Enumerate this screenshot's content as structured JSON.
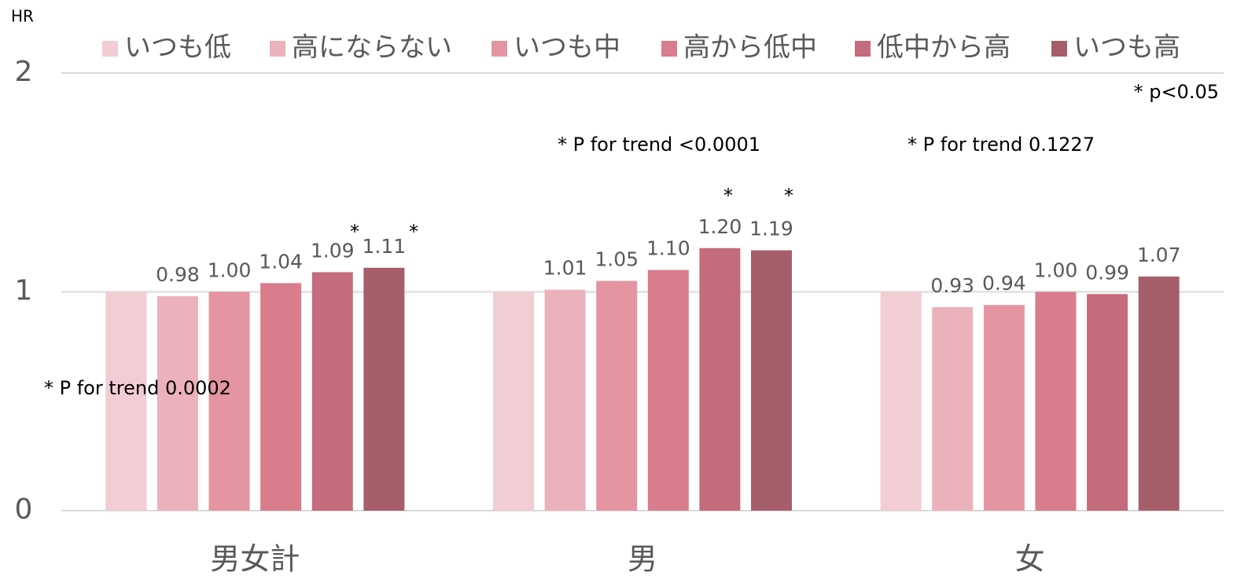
{
  "chart_data": {
    "type": "bar",
    "y_axis_label": "HR",
    "categories": [
      "男女計",
      "男",
      "女"
    ],
    "ylim": [
      0,
      2
    ],
    "yticks": [
      0,
      1,
      2
    ],
    "grid": true,
    "legend": "top",
    "series": [
      {
        "name": "いつも低",
        "color": "#f2cdd3",
        "values": [
          1,
          1,
          1
        ],
        "value_labels": [
          null,
          null,
          null
        ]
      },
      {
        "name": "高にならない",
        "color": "#ecb2bb",
        "values": [
          0.98,
          1.01,
          0.93
        ],
        "value_labels": [
          "0.98",
          "1.01",
          "0.93"
        ]
      },
      {
        "name": "いつも中",
        "color": "#e495a1",
        "values": [
          1,
          1.05,
          0.94
        ],
        "value_labels": [
          "1.00",
          "1.05",
          "0.94"
        ]
      },
      {
        "name": "高から低中",
        "color": "#d97c8c",
        "values": [
          1.04,
          1.1,
          1
        ],
        "value_labels": [
          "1.04",
          "1.10",
          "1.00"
        ]
      },
      {
        "name": "低中から高",
        "color": "#c46b7c",
        "values": [
          1.09,
          1.2,
          0.99
        ],
        "value_labels": [
          "1.09",
          "1.20",
          "0.99"
        ]
      },
      {
        "name": "いつも高",
        "color": "#a65f6a",
        "values": [
          1.11,
          1.19,
          1.07
        ],
        "value_labels": [
          "1.11",
          "1.19",
          "1.07"
        ]
      }
    ],
    "annotations": [
      "* p<0.05",
      "* P for trend 0.0002",
      "* P for trend <0.0001",
      "* P for trend 0.1227",
      "*",
      "*",
      "*",
      "*"
    ]
  }
}
